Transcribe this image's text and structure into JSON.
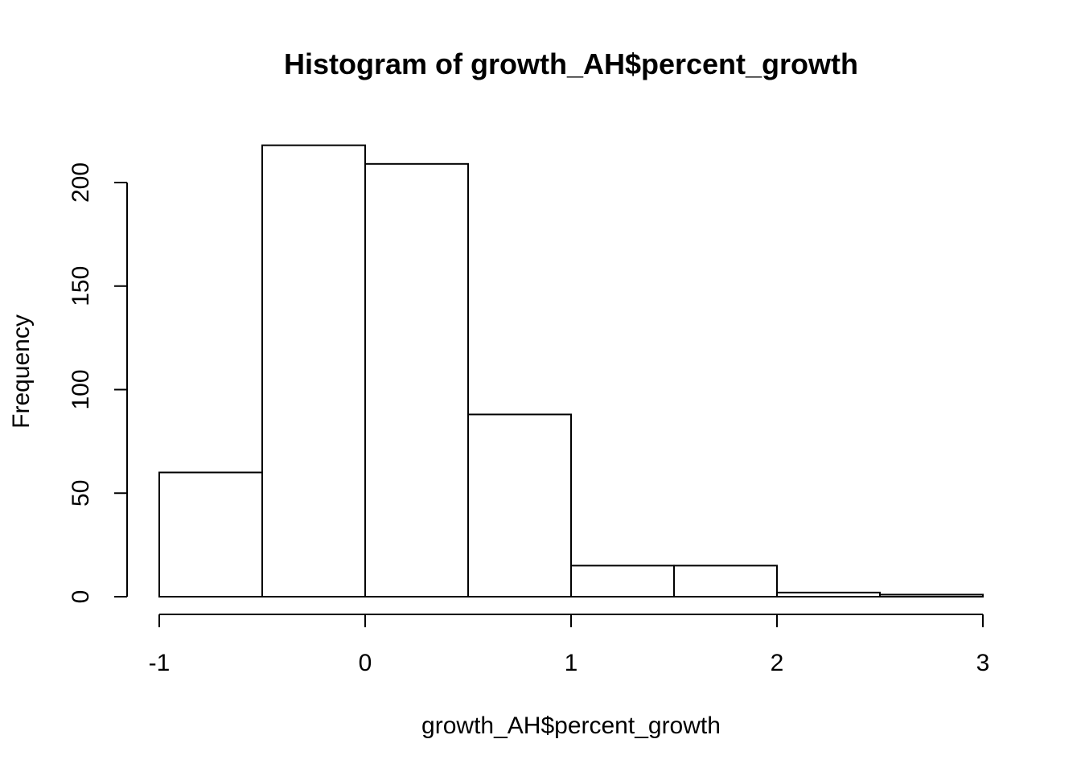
{
  "chart_data": {
    "type": "bar",
    "title": "Histogram of growth_AH$percent_growth",
    "xlabel": "growth_AH$percent_growth",
    "ylabel": "Frequency",
    "bins": [
      {
        "x0": -1.0,
        "x1": -0.5,
        "count": 60
      },
      {
        "x0": -0.5,
        "x1": 0.0,
        "count": 218
      },
      {
        "x0": 0.0,
        "x1": 0.5,
        "count": 209
      },
      {
        "x0": 0.5,
        "x1": 1.0,
        "count": 88
      },
      {
        "x0": 1.0,
        "x1": 1.5,
        "count": 15
      },
      {
        "x0": 1.5,
        "x1": 2.0,
        "count": 15
      },
      {
        "x0": 2.0,
        "x1": 2.5,
        "count": 2
      },
      {
        "x0": 2.5,
        "x1": 3.0,
        "count": 1
      }
    ],
    "x_ticks": [
      "-1",
      "0",
      "1",
      "2",
      "3"
    ],
    "y_ticks": [
      "0",
      "50",
      "100",
      "150",
      "200"
    ],
    "xlim": [
      -1,
      3
    ],
    "ylim": [
      0,
      200
    ],
    "grid": false,
    "bar_fill": "#ffffff",
    "bar_stroke": "#000000"
  }
}
